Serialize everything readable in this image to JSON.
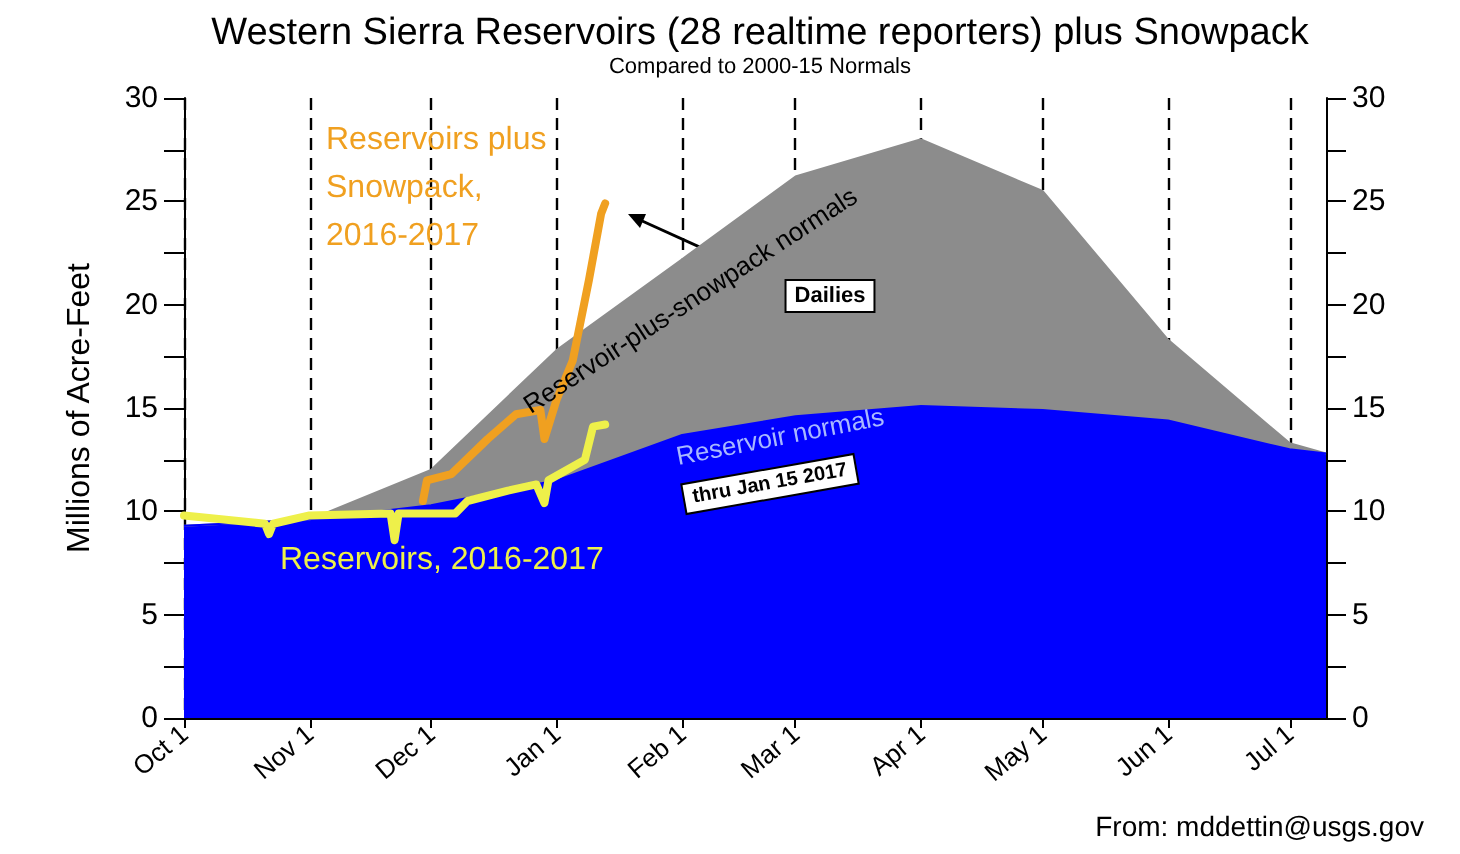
{
  "chart_data": {
    "type": "area",
    "title": "Western Sierra Reservoirs (28 realtime reporters) plus Snowpack",
    "subtitle": "Compared to 2000-15 Normals",
    "ylabel": "Millions of Acre-Feet",
    "annotations": [
      "Dailies",
      "thru Jan 15 2017",
      "From: mddettin@usgs.gov"
    ],
    "xlim": [
      "2016-10-01",
      "2017-07-10"
    ],
    "xticks": [
      {
        "value": "2016-10-01",
        "label": "Oct 1"
      },
      {
        "value": "2016-11-01",
        "label": "Nov 1"
      },
      {
        "value": "2016-12-01",
        "label": "Dec 1"
      },
      {
        "value": "2017-01-01",
        "label": "Jan 1"
      },
      {
        "value": "2017-02-01",
        "label": "Feb 1"
      },
      {
        "value": "2017-03-01",
        "label": "Mar 1"
      },
      {
        "value": "2017-04-01",
        "label": "Apr 1"
      },
      {
        "value": "2017-05-01",
        "label": "May 1"
      },
      {
        "value": "2017-06-01",
        "label": "Jun 1"
      },
      {
        "value": "2017-07-01",
        "label": "Jul 1"
      }
    ],
    "ylim": [
      0,
      30
    ],
    "yticks": [
      0,
      {
        "value": 2.5,
        "label": null
      },
      5,
      {
        "value": 7.5,
        "label": null
      },
      10,
      {
        "value": 12.5,
        "label": null
      },
      15,
      {
        "value": 17.5,
        "label": null
      },
      20,
      {
        "value": 22.5,
        "label": null
      },
      25,
      {
        "value": 27.5,
        "label": null
      },
      30
    ],
    "y2lim": [
      0,
      30
    ],
    "y2ticks": [
      0,
      {
        "value": 2.5,
        "label": null
      },
      5,
      {
        "value": 7.5,
        "label": null
      },
      10,
      {
        "value": 12.5,
        "label": null
      },
      15,
      {
        "value": 17.5,
        "label": null
      },
      20,
      {
        "value": 22.5,
        "label": null
      },
      25,
      {
        "value": 27.5,
        "label": null
      },
      30
    ],
    "grid": "x",
    "series": [
      {
        "name": "Reservoir-plus-snowpack normals",
        "color": "#8c8c8c",
        "x": [
          "2016-10-01",
          "2016-11-01",
          "2016-12-01",
          "2017-01-01",
          "2017-02-01",
          "2017-03-01",
          "2017-04-01",
          "2017-05-01",
          "2017-06-01",
          "2017-07-01",
          "2017-07-10"
        ],
        "values": [
          9.3,
          9.6,
          12,
          17.8,
          22.2,
          26.2,
          28,
          25.5,
          18.3,
          13.3,
          12.8
        ]
      },
      {
        "name": "Reservoir normals",
        "color": "#0000ff",
        "x": [
          "2016-10-01",
          "2016-11-01",
          "2016-12-01",
          "2017-01-01",
          "2017-02-01",
          "2017-03-01",
          "2017-04-01",
          "2017-05-01",
          "2017-06-01",
          "2017-07-01",
          "2017-07-10"
        ],
        "values": [
          9.3,
          9.6,
          10.3,
          11.5,
          13.7,
          14.6,
          15.1,
          14.9,
          14.4,
          13.0,
          12.8
        ]
      },
      {
        "name": "Reservoirs, 2016-2017",
        "type": "line",
        "color": "#eef04a",
        "x": [
          "2016-10-01",
          "2016-10-21",
          "2016-10-22",
          "2016-10-23",
          "2016-11-01",
          "2016-11-21",
          "2016-11-22",
          "2016-11-23",
          "2016-12-07",
          "2016-12-10",
          "2016-12-20",
          "2016-12-27",
          "2016-12-29",
          "2016-12-30",
          "2017-01-08",
          "2017-01-10",
          "2017-01-13"
        ],
        "values": [
          9.8,
          9.4,
          8.9,
          9.4,
          9.8,
          9.9,
          8.6,
          9.9,
          9.9,
          10.5,
          11.0,
          11.3,
          10.4,
          11.5,
          12.5,
          14.1,
          14.2
        ]
      },
      {
        "name": "Reservoirs plus Snowpack, 2016-2017",
        "type": "line",
        "color": "#f0a020",
        "x": [
          "2016-11-29",
          "2016-11-30",
          "2016-12-06",
          "2016-12-15",
          "2016-12-22",
          "2016-12-28",
          "2016-12-29",
          "2017-01-01",
          "2017-01-05",
          "2017-01-09",
          "2017-01-12",
          "2017-01-13"
        ],
        "values": [
          10.5,
          11.5,
          11.8,
          13.5,
          14.7,
          14.9,
          13.5,
          15.4,
          17.3,
          21.2,
          24.4,
          24.9
        ]
      }
    ]
  }
}
